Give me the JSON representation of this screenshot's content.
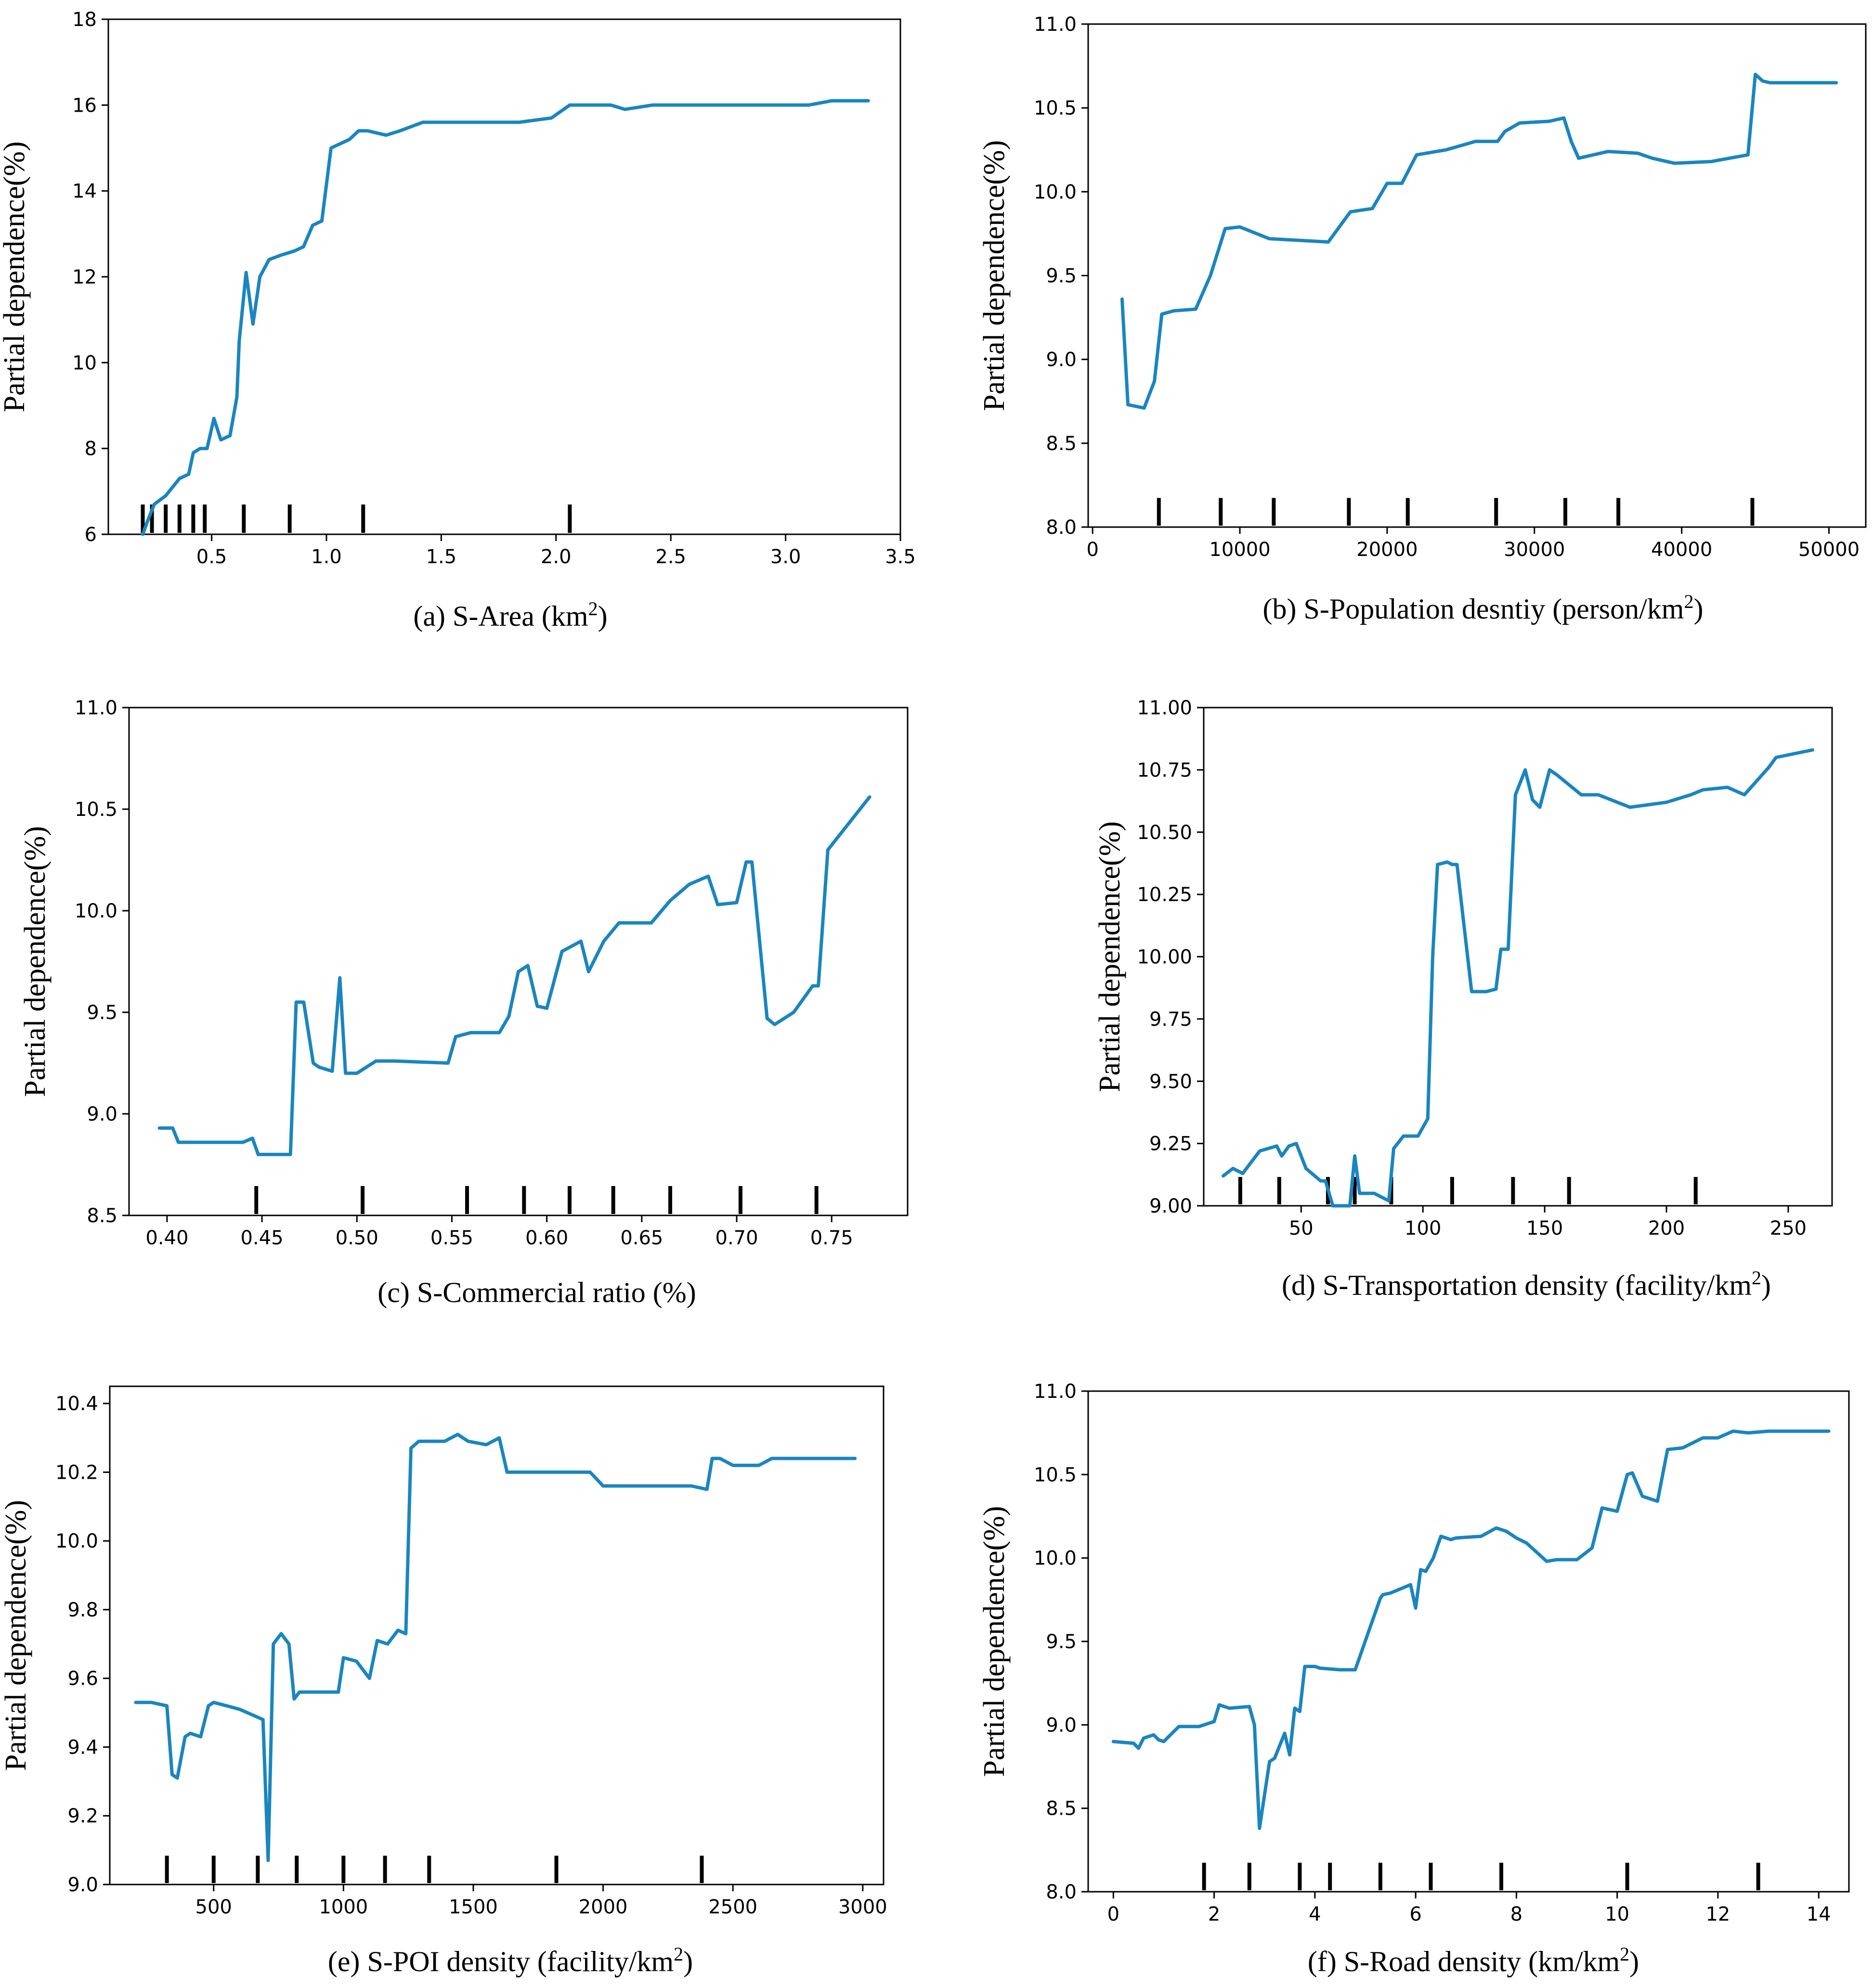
{
  "figure": {
    "series_color": "#1a85c0"
  },
  "chart_data": [
    {
      "id": "a",
      "type": "line",
      "caption": "(a) S-Area (km",
      "caption_sup": "2",
      "caption_tail": ")",
      "xlabel": "S-Area",
      "ylabel": "Partial dependence(%)",
      "xlim": [
        0.05,
        3.5
      ],
      "ylim": [
        6,
        18
      ],
      "xticks": [
        0.5,
        1.0,
        1.5,
        2.0,
        2.5,
        3.0,
        3.5
      ],
      "xtick_labels": [
        "0.5",
        "1.0",
        "1.5",
        "2.0",
        "2.5",
        "3.0",
        "3.5"
      ],
      "yticks": [
        6,
        8,
        10,
        12,
        14,
        16,
        18
      ],
      "ytick_labels": [
        "6",
        "8",
        "10",
        "12",
        "14",
        "16",
        "18"
      ],
      "rug": [
        0.2,
        0.24,
        0.3,
        0.36,
        0.42,
        0.47,
        0.64,
        0.84,
        1.16,
        2.06
      ],
      "x": [
        0.2,
        0.22,
        0.25,
        0.3,
        0.33,
        0.36,
        0.4,
        0.42,
        0.45,
        0.48,
        0.51,
        0.54,
        0.58,
        0.61,
        0.62,
        0.65,
        0.68,
        0.71,
        0.75,
        0.8,
        0.86,
        0.9,
        0.94,
        0.98,
        1.02,
        1.06,
        1.1,
        1.14,
        1.18,
        1.26,
        1.32,
        1.42,
        1.56,
        1.7,
        1.84,
        1.98,
        2.06,
        2.24,
        2.3,
        2.42,
        2.56,
        2.75,
        3.1,
        3.2,
        3.36
      ],
      "y": [
        6.0,
        6.3,
        6.7,
        6.9,
        7.1,
        7.3,
        7.4,
        7.9,
        8.0,
        8.0,
        8.7,
        8.2,
        8.3,
        9.2,
        10.5,
        12.1,
        10.9,
        12.0,
        12.4,
        12.5,
        12.6,
        12.7,
        13.2,
        13.3,
        15.0,
        15.1,
        15.2,
        15.4,
        15.4,
        15.3,
        15.4,
        15.6,
        15.6,
        15.6,
        15.6,
        15.7,
        16.0,
        16.0,
        15.9,
        16.0,
        16.0,
        16.0,
        16.0,
        16.1,
        16.1
      ]
    },
    {
      "id": "b",
      "type": "line",
      "caption": "(b) S-Population desntiy (person/km",
      "caption_sup": "2",
      "caption_tail": ")",
      "xlabel": "S-Population desntiy",
      "ylabel": "Partial dependence(%)",
      "xlim": [
        -300,
        52500
      ],
      "ylim": [
        8.0,
        11.0
      ],
      "xticks": [
        0,
        10000,
        20000,
        30000,
        40000,
        50000
      ],
      "xtick_labels": [
        "0",
        "10000",
        "20000",
        "30000",
        "40000",
        "50000"
      ],
      "yticks": [
        8.0,
        8.5,
        9.0,
        9.5,
        10.0,
        10.5,
        11.0
      ],
      "ytick_labels": [
        "8.0",
        "8.5",
        "9.0",
        "9.5",
        "10.0",
        "10.5",
        "11.0"
      ],
      "rug": [
        4500,
        8700,
        12300,
        17400,
        21400,
        27400,
        32100,
        35700,
        44800
      ],
      "x": [
        2000,
        2400,
        3500,
        4200,
        4700,
        5500,
        7000,
        8000,
        9000,
        10000,
        12000,
        14000,
        16000,
        17500,
        19000,
        20000,
        21000,
        22000,
        24000,
        26000,
        27500,
        28000,
        29000,
        31000,
        32000,
        32500,
        33000,
        35000,
        37000,
        38000,
        39500,
        42000,
        44500,
        45000,
        45500,
        46000,
        48000,
        50500
      ],
      "y": [
        9.36,
        8.73,
        8.71,
        8.87,
        9.27,
        9.29,
        9.3,
        9.5,
        9.78,
        9.79,
        9.72,
        9.71,
        9.7,
        9.88,
        9.9,
        10.05,
        10.05,
        10.22,
        10.25,
        10.3,
        10.3,
        10.36,
        10.41,
        10.42,
        10.44,
        10.3,
        10.2,
        10.24,
        10.23,
        10.2,
        10.17,
        10.18,
        10.22,
        10.7,
        10.66,
        10.65,
        10.65,
        10.65
      ]
    },
    {
      "id": "c",
      "type": "line",
      "caption": "(c) S-Commercial ratio (%)",
      "caption_sup": "",
      "caption_tail": "",
      "xlabel": "S-Commercial ratio",
      "ylabel": "Partial dependence(%)",
      "xlim": [
        0.38,
        0.79
      ],
      "ylim": [
        8.5,
        11.0
      ],
      "xticks": [
        0.4,
        0.45,
        0.5,
        0.55,
        0.6,
        0.65,
        0.7,
        0.75
      ],
      "xtick_labels": [
        "0.40",
        "0.45",
        "0.50",
        "0.55",
        "0.60",
        "0.65",
        "0.70",
        "0.75"
      ],
      "yticks": [
        8.5,
        9.0,
        9.5,
        10.0,
        10.5,
        11.0
      ],
      "ytick_labels": [
        "8.5",
        "9.0",
        "9.5",
        "10.0",
        "10.5",
        "11.0"
      ],
      "rug": [
        0.447,
        0.503,
        0.558,
        0.588,
        0.612,
        0.635,
        0.665,
        0.702,
        0.742
      ],
      "x": [
        0.396,
        0.403,
        0.406,
        0.44,
        0.445,
        0.448,
        0.465,
        0.468,
        0.472,
        0.477,
        0.48,
        0.487,
        0.491,
        0.494,
        0.5,
        0.51,
        0.52,
        0.548,
        0.552,
        0.56,
        0.575,
        0.58,
        0.585,
        0.59,
        0.595,
        0.6,
        0.608,
        0.618,
        0.622,
        0.63,
        0.638,
        0.655,
        0.665,
        0.675,
        0.685,
        0.69,
        0.7,
        0.705,
        0.708,
        0.716,
        0.72,
        0.73,
        0.74,
        0.743,
        0.748,
        0.77
      ],
      "y": [
        8.93,
        8.93,
        8.86,
        8.86,
        8.88,
        8.8,
        8.8,
        9.55,
        9.55,
        9.25,
        9.23,
        9.21,
        9.67,
        9.2,
        9.2,
        9.26,
        9.26,
        9.25,
        9.38,
        9.4,
        9.4,
        9.48,
        9.7,
        9.73,
        9.53,
        9.52,
        9.8,
        9.85,
        9.7,
        9.85,
        9.94,
        9.94,
        10.05,
        10.13,
        10.17,
        10.03,
        10.04,
        10.24,
        10.24,
        9.47,
        9.44,
        9.5,
        9.63,
        9.63,
        10.3,
        10.56
      ]
    },
    {
      "id": "d",
      "type": "line",
      "caption": "(d) S-Transportation density (facility/km",
      "caption_sup": "2",
      "caption_tail": ")",
      "xlabel": "S-Transportation density",
      "ylabel": "Partial dependence(%)",
      "xlim": [
        10,
        268
      ],
      "ylim": [
        9.0,
        11.0
      ],
      "xticks": [
        50,
        100,
        150,
        200,
        250
      ],
      "xtick_labels": [
        "50",
        "100",
        "150",
        "200",
        "250"
      ],
      "yticks": [
        9.0,
        9.25,
        9.5,
        9.75,
        10.0,
        10.25,
        10.5,
        10.75,
        11.0
      ],
      "ytick_labels": [
        "9.00",
        "9.25",
        "9.50",
        "9.75",
        "10.00",
        "10.25",
        "10.50",
        "10.75",
        "11.00"
      ],
      "rug": [
        25,
        41,
        61,
        72,
        87,
        112,
        137,
        160,
        212
      ],
      "x": [
        18,
        22,
        26,
        33,
        40,
        42,
        45,
        48,
        52,
        58,
        60,
        63,
        68,
        70,
        72,
        74,
        80,
        84,
        86,
        88,
        92,
        96,
        98,
        102,
        104,
        106,
        110,
        112,
        114,
        120,
        126,
        130,
        132,
        135,
        138,
        142,
        145,
        148,
        152,
        155,
        165,
        172,
        185,
        200,
        210,
        215,
        225,
        232,
        242,
        245,
        260
      ],
      "y": [
        9.12,
        9.15,
        9.13,
        9.22,
        9.24,
        9.2,
        9.24,
        9.25,
        9.15,
        9.1,
        9.1,
        9.0,
        9.0,
        9.0,
        9.2,
        9.05,
        9.05,
        9.03,
        9.02,
        9.23,
        9.28,
        9.28,
        9.28,
        9.35,
        10.0,
        10.37,
        10.38,
        10.37,
        10.37,
        9.86,
        9.86,
        9.87,
        10.03,
        10.03,
        10.65,
        10.75,
        10.63,
        10.6,
        10.75,
        10.73,
        10.65,
        10.65,
        10.6,
        10.62,
        10.65,
        10.67,
        10.68,
        10.65,
        10.76,
        10.8,
        10.83
      ]
    },
    {
      "id": "e",
      "type": "line",
      "caption": "(e) S-POI density (facility/km",
      "caption_sup": "2",
      "caption_tail": ")",
      "xlabel": "S-POI density",
      "ylabel": "Partial dependence(%)",
      "xlim": [
        100,
        3080
      ],
      "ylim": [
        9.0,
        10.45
      ],
      "xticks": [
        500,
        1000,
        1500,
        2000,
        2500,
        3000
      ],
      "xtick_labels": [
        "500",
        "1000",
        "1500",
        "2000",
        "2500",
        "3000"
      ],
      "yticks": [
        9.0,
        9.2,
        9.4,
        9.6,
        9.8,
        10.0,
        10.2,
        10.4
      ],
      "ytick_labels": [
        "9.0",
        "9.2",
        "9.4",
        "9.6",
        "9.8",
        "10.0",
        "10.2",
        "10.4"
      ],
      "rug": [
        320,
        500,
        670,
        820,
        1000,
        1160,
        1330,
        1820,
        2380
      ],
      "x": [
        200,
        260,
        320,
        340,
        360,
        390,
        410,
        450,
        480,
        500,
        550,
        600,
        660,
        690,
        710,
        730,
        760,
        790,
        810,
        830,
        900,
        980,
        1000,
        1050,
        1100,
        1130,
        1170,
        1210,
        1240,
        1260,
        1290,
        1330,
        1390,
        1440,
        1480,
        1550,
        1600,
        1630,
        1700,
        1800,
        1950,
        2000,
        2150,
        2300,
        2340,
        2400,
        2420,
        2450,
        2500,
        2600,
        2650,
        2800,
        2970
      ],
      "y": [
        9.53,
        9.53,
        9.52,
        9.32,
        9.31,
        9.43,
        9.44,
        9.43,
        9.52,
        9.53,
        9.52,
        9.51,
        9.49,
        9.48,
        9.07,
        9.7,
        9.73,
        9.7,
        9.54,
        9.56,
        9.56,
        9.56,
        9.66,
        9.65,
        9.6,
        9.71,
        9.7,
        9.74,
        9.73,
        10.27,
        10.29,
        10.29,
        10.29,
        10.31,
        10.29,
        10.28,
        10.3,
        10.2,
        10.2,
        10.2,
        10.2,
        10.16,
        10.16,
        10.16,
        10.16,
        10.15,
        10.24,
        10.24,
        10.22,
        10.22,
        10.24,
        10.24,
        10.24
      ]
    },
    {
      "id": "f",
      "type": "line",
      "caption": "(f) S-Road density (km/km",
      "caption_sup": "2",
      "caption_tail": ")",
      "xlabel": "S-Road density",
      "ylabel": "Partial dependence(%)",
      "xlim": [
        -0.5,
        14.6
      ],
      "ylim": [
        8.0,
        11.0
      ],
      "xticks": [
        0,
        2,
        4,
        6,
        8,
        10,
        12,
        14
      ],
      "xtick_labels": [
        "0",
        "2",
        "4",
        "6",
        "8",
        "10",
        "12",
        "14"
      ],
      "rug": [
        1.8,
        2.7,
        3.7,
        4.3,
        5.3,
        6.3,
        7.7,
        10.2,
        12.8
      ],
      "yticks": [
        8.0,
        8.5,
        9.0,
        9.5,
        10.0,
        10.5,
        11.0
      ],
      "ytick_labels": [
        "8.0",
        "8.5",
        "9.0",
        "9.5",
        "10.0",
        "10.5",
        "11.0"
      ],
      "x": [
        0.0,
        0.4,
        0.5,
        0.6,
        0.8,
        0.9,
        1.0,
        1.3,
        1.5,
        1.7,
        2.0,
        2.1,
        2.3,
        2.7,
        2.8,
        2.9,
        3.1,
        3.2,
        3.4,
        3.5,
        3.6,
        3.7,
        3.8,
        4.0,
        4.1,
        4.5,
        4.8,
        5.3,
        5.35,
        5.5,
        5.9,
        6.0,
        6.1,
        6.2,
        6.35,
        6.5,
        6.7,
        6.8,
        7.3,
        7.6,
        7.8,
        8.0,
        8.2,
        8.6,
        8.8,
        9.2,
        9.5,
        9.7,
        10.0,
        10.2,
        10.3,
        10.5,
        10.6,
        10.8,
        11.0,
        11.3,
        11.7,
        12.0,
        12.3,
        12.6,
        13.0,
        14.2
      ],
      "y": [
        8.9,
        8.89,
        8.86,
        8.92,
        8.94,
        8.91,
        8.9,
        8.99,
        8.99,
        8.99,
        9.02,
        9.12,
        9.1,
        9.11,
        9.0,
        8.38,
        8.78,
        8.8,
        8.95,
        8.82,
        9.1,
        9.08,
        9.35,
        9.35,
        9.34,
        9.33,
        9.33,
        9.76,
        9.78,
        9.79,
        9.84,
        9.7,
        9.93,
        9.92,
        10.0,
        10.13,
        10.11,
        10.12,
        10.13,
        10.18,
        10.16,
        10.12,
        10.09,
        9.98,
        9.99,
        9.99,
        10.06,
        10.3,
        10.28,
        10.5,
        10.51,
        10.37,
        10.36,
        10.34,
        10.65,
        10.66,
        10.72,
        10.72,
        10.76,
        10.75,
        10.76,
        10.76
      ]
    }
  ]
}
